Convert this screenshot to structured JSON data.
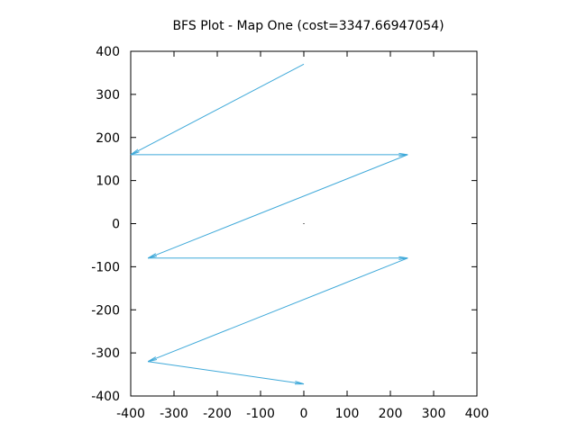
{
  "chart_data": {
    "type": "line",
    "title": "BFS Plot - Map One (cost=3347.66947054)",
    "xlabel": "",
    "ylabel": "",
    "xlim": [
      -400,
      400
    ],
    "ylim": [
      -400,
      400
    ],
    "xticks": [
      -400,
      -300,
      -200,
      -100,
      0,
      100,
      200,
      300,
      400
    ],
    "yticks": [
      -400,
      -300,
      -200,
      -100,
      0,
      100,
      200,
      300,
      400
    ],
    "grid": false,
    "legend": "none",
    "series": [
      {
        "style": "vectors",
        "color": "#3fa9d9",
        "points": [
          {
            "x": 0,
            "y": 370
          },
          {
            "x": -400,
            "y": 160
          },
          {
            "x": 240,
            "y": 160
          },
          {
            "x": -360,
            "y": -80
          },
          {
            "x": 240,
            "y": -80
          },
          {
            "x": -360,
            "y": -320
          },
          {
            "x": 0,
            "y": -372
          }
        ]
      }
    ],
    "annotations": [
      {
        "x": 0,
        "y": 0,
        "marker": "dot"
      }
    ]
  }
}
